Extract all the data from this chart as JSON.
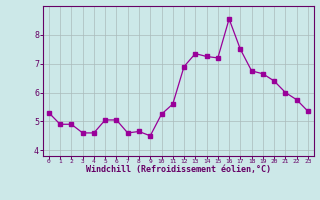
{
  "x": [
    0,
    1,
    2,
    3,
    4,
    5,
    6,
    7,
    8,
    9,
    10,
    11,
    12,
    13,
    14,
    15,
    16,
    17,
    18,
    19,
    20,
    21,
    22,
    23
  ],
  "y": [
    5.3,
    4.9,
    4.9,
    4.6,
    4.6,
    5.05,
    5.05,
    4.6,
    4.65,
    4.5,
    5.25,
    5.6,
    6.9,
    7.35,
    7.25,
    7.2,
    8.55,
    7.5,
    6.75,
    6.65,
    6.4,
    6.0,
    5.75,
    5.35
  ],
  "line_color": "#990099",
  "marker": "s",
  "marker_size": 2.5,
  "bg_color": "#cce8e8",
  "grid_color": "#aabbbb",
  "xlabel": "Windchill (Refroidissement éolien,°C)",
  "xlabel_color": "#660066",
  "tick_color": "#660066",
  "axis_color": "#660066",
  "ylim": [
    3.8,
    9.0
  ],
  "xlim": [
    -0.5,
    23.5
  ],
  "yticks": [
    4,
    5,
    6,
    7,
    8
  ],
  "xticks": [
    0,
    1,
    2,
    3,
    4,
    5,
    6,
    7,
    8,
    9,
    10,
    11,
    12,
    13,
    14,
    15,
    16,
    17,
    18,
    19,
    20,
    21,
    22,
    23
  ]
}
